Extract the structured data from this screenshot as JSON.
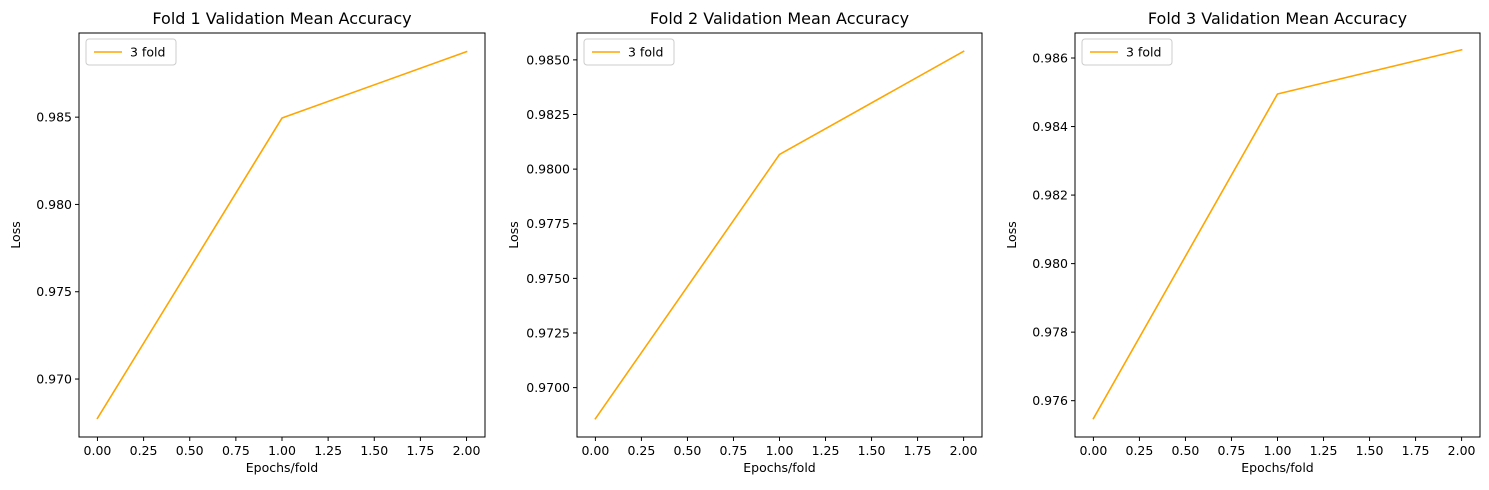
{
  "chart_data": [
    {
      "type": "line",
      "title": "Fold 1 Validation Mean Accuracy",
      "xlabel": "Epochs/fold",
      "ylabel": "Loss",
      "xlim": [
        -0.1,
        2.1
      ],
      "ylim": [
        0.96668,
        0.98982
      ],
      "xticks": [
        0.0,
        0.25,
        0.5,
        0.75,
        1.0,
        1.25,
        1.5,
        1.75,
        2.0
      ],
      "xtick_labels": [
        "0.00",
        "0.25",
        "0.50",
        "0.75",
        "1.00",
        "1.25",
        "1.50",
        "1.75",
        "2.00"
      ],
      "yticks": [
        0.97,
        0.975,
        0.98,
        0.985
      ],
      "ytick_labels": [
        "0.970",
        "0.975",
        "0.980",
        "0.985"
      ],
      "grid": false,
      "legend": "top-left",
      "series": [
        {
          "name": "3 fold",
          "color": "#ffa500",
          "x": [
            0,
            1,
            2
          ],
          "y": [
            0.96775,
            0.98495,
            0.98875
          ]
        }
      ]
    },
    {
      "type": "line",
      "title": "Fold 2 Validation Mean Accuracy",
      "xlabel": "Epochs/fold",
      "ylabel": "Loss",
      "xlim": [
        -0.1,
        2.1
      ],
      "ylim": [
        0.96774,
        0.98623
      ],
      "xticks": [
        0.0,
        0.25,
        0.5,
        0.75,
        1.0,
        1.25,
        1.5,
        1.75,
        2.0
      ],
      "xtick_labels": [
        "0.00",
        "0.25",
        "0.50",
        "0.75",
        "1.00",
        "1.25",
        "1.50",
        "1.75",
        "2.00"
      ],
      "yticks": [
        0.97,
        0.9725,
        0.975,
        0.9775,
        0.98,
        0.9825,
        0.985
      ],
      "ytick_labels": [
        "0.9700",
        "0.9725",
        "0.9750",
        "0.9775",
        "0.9800",
        "0.9825",
        "0.9850"
      ],
      "grid": false,
      "legend": "top-left",
      "series": [
        {
          "name": "3 fold",
          "color": "#ffa500",
          "x": [
            0,
            1,
            2
          ],
          "y": [
            0.96858,
            0.98067,
            0.98539
          ]
        }
      ]
    },
    {
      "type": "line",
      "title": "Fold 3 Validation Mean Accuracy",
      "xlabel": "Epochs/fold",
      "ylabel": "Loss",
      "xlim": [
        -0.1,
        2.1
      ],
      "ylim": [
        0.97494,
        0.98673
      ],
      "xticks": [
        0.0,
        0.25,
        0.5,
        0.75,
        1.0,
        1.25,
        1.5,
        1.75,
        2.0
      ],
      "xtick_labels": [
        "0.00",
        "0.25",
        "0.50",
        "0.75",
        "1.00",
        "1.25",
        "1.50",
        "1.75",
        "2.00"
      ],
      "yticks": [
        0.976,
        0.978,
        0.98,
        0.982,
        0.984,
        0.986
      ],
      "ytick_labels": [
        "0.976",
        "0.978",
        "0.980",
        "0.982",
        "0.984",
        "0.986"
      ],
      "grid": false,
      "legend": "top-left",
      "series": [
        {
          "name": "3 fold",
          "color": "#ffa500",
          "x": [
            0,
            1,
            2
          ],
          "y": [
            0.97548,
            0.98495,
            0.98624
          ]
        }
      ]
    }
  ]
}
